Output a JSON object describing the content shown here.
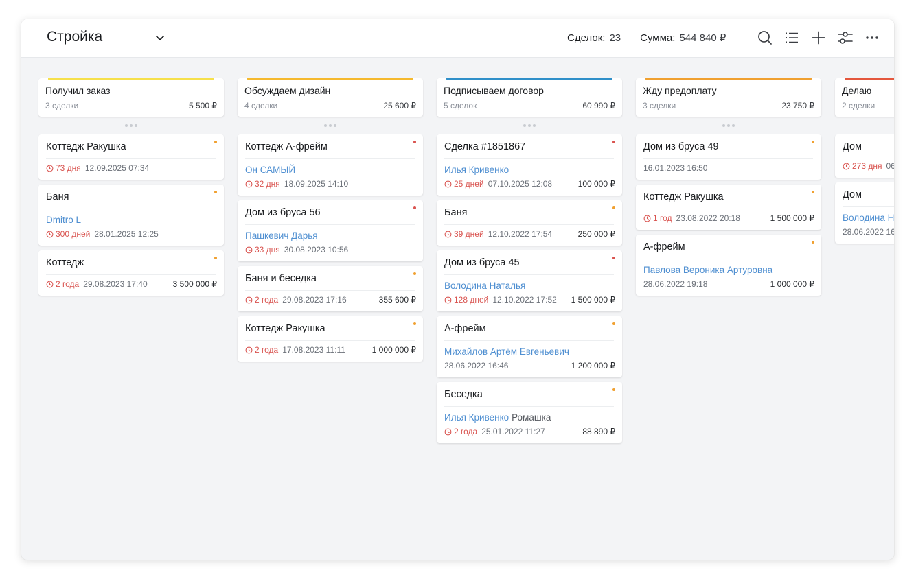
{
  "header": {
    "title": "Стройка",
    "deals_label": "Сделок:",
    "deals_value": "23",
    "sum_label": "Сумма:",
    "sum_value": "544 840 ₽"
  },
  "columns": [
    {
      "title": "Получил заказ",
      "count": "3 сделки",
      "sum": "5 500 ₽",
      "color": "#f6e04b",
      "cards": [
        {
          "title": "Коттедж Ракушка",
          "dot": "#f0a030",
          "contact": "",
          "extra": "",
          "age": "73 дня",
          "date": "12.09.2025 07:34",
          "amount": ""
        },
        {
          "title": "Баня",
          "dot": "#f0a030",
          "contact": "Dmitro L",
          "extra": "",
          "age": "300 дней",
          "date": "28.01.2025 12:25",
          "amount": ""
        },
        {
          "title": "Коттедж",
          "dot": "#f0a030",
          "contact": "",
          "extra": "",
          "age": "2 года",
          "date": "29.08.2023 17:40",
          "amount": "3 500 000 ₽"
        }
      ]
    },
    {
      "title": "Обсуждаем дизайн",
      "count": "4 сделки",
      "sum": "25 600 ₽",
      "color": "#f5b92e",
      "cards": [
        {
          "title": "Коттедж А-фрейм",
          "dot": "#d9534f",
          "contact": "Он САМЫЙ",
          "extra": "",
          "age": "32 дня",
          "date": "18.09.2025 14:10",
          "amount": ""
        },
        {
          "title": "Дом из бруса 56",
          "dot": "#d9534f",
          "contact": "Пашкевич Дарья",
          "extra": "",
          "age": "33 дня",
          "date": "30.08.2023 10:56",
          "amount": ""
        },
        {
          "title": "Баня и беседка",
          "dot": "#f0a030",
          "contact": "",
          "extra": "",
          "age": "2 года",
          "date": "29.08.2023 17:16",
          "amount": "355 600 ₽"
        },
        {
          "title": "Коттедж Ракушка",
          "dot": "#f0a030",
          "contact": "",
          "extra": "",
          "age": "2 года",
          "date": "17.08.2023 11:11",
          "amount": "1 000 000 ₽"
        }
      ]
    },
    {
      "title": "Подписываем договор",
      "count": "5 сделок",
      "sum": "60 990 ₽",
      "color": "#2f8fc9",
      "cards": [
        {
          "title": "Сделка #1851867",
          "dot": "#d9534f",
          "contact": "Илья Кривенко",
          "extra": "",
          "age": "25 дней",
          "date": "07.10.2025 12:08",
          "amount": "100 000 ₽"
        },
        {
          "title": "Баня",
          "dot": "#f0a030",
          "contact": "",
          "extra": "",
          "age": "39 дней",
          "date": "12.10.2022 17:54",
          "amount": "250 000 ₽"
        },
        {
          "title": "Дом из бруса 45",
          "dot": "#d9534f",
          "contact": "Володина Наталья",
          "extra": "",
          "age": "128 дней",
          "date": "12.10.2022 17:52",
          "amount": "1 500 000 ₽"
        },
        {
          "title": "А-фрейм",
          "dot": "#f0a030",
          "contact": "Михайлов Артём Евгеньевич",
          "extra": "",
          "age": "",
          "date": "28.06.2022 16:46",
          "amount": "1 200 000 ₽"
        },
        {
          "title": "Беседка",
          "dot": "#f0a030",
          "contact": "Илья Кривенко",
          "extra": "Ромашка",
          "age": "2 года",
          "date": "25.01.2022 11:27",
          "amount": "88 890 ₽"
        }
      ]
    },
    {
      "title": "Жду предоплату",
      "count": "3 сделки",
      "sum": "23 750 ₽",
      "color": "#f0a030",
      "cards": [
        {
          "title": "Дом из бруса 49",
          "dot": "#f0a030",
          "contact": "",
          "extra": "",
          "age": "",
          "date": "16.01.2023 16:50",
          "amount": ""
        },
        {
          "title": "Коттедж Ракушка",
          "dot": "#f0a030",
          "contact": "",
          "extra": "",
          "age": "1 год",
          "date": "23.08.2022 20:18",
          "amount": "1 500 000 ₽"
        },
        {
          "title": "А-фрейм",
          "dot": "#f0a030",
          "contact": "Павлова Вероника Артуровна",
          "extra": "",
          "age": "",
          "date": "28.06.2022 19:18",
          "amount": "1 000 000 ₽"
        }
      ]
    },
    {
      "title": "Делаю",
      "count": "2 сделки",
      "sum": "",
      "color": "#e4573d",
      "cards": [
        {
          "title": "Дом",
          "dot": "",
          "contact": "",
          "extra": "",
          "age": "273 дня",
          "date": "06",
          "amount": ""
        },
        {
          "title": "Дом",
          "dot": "",
          "contact": "Володина Н",
          "extra": "",
          "age": "",
          "date": "28.06.2022 16",
          "amount": ""
        }
      ]
    }
  ]
}
